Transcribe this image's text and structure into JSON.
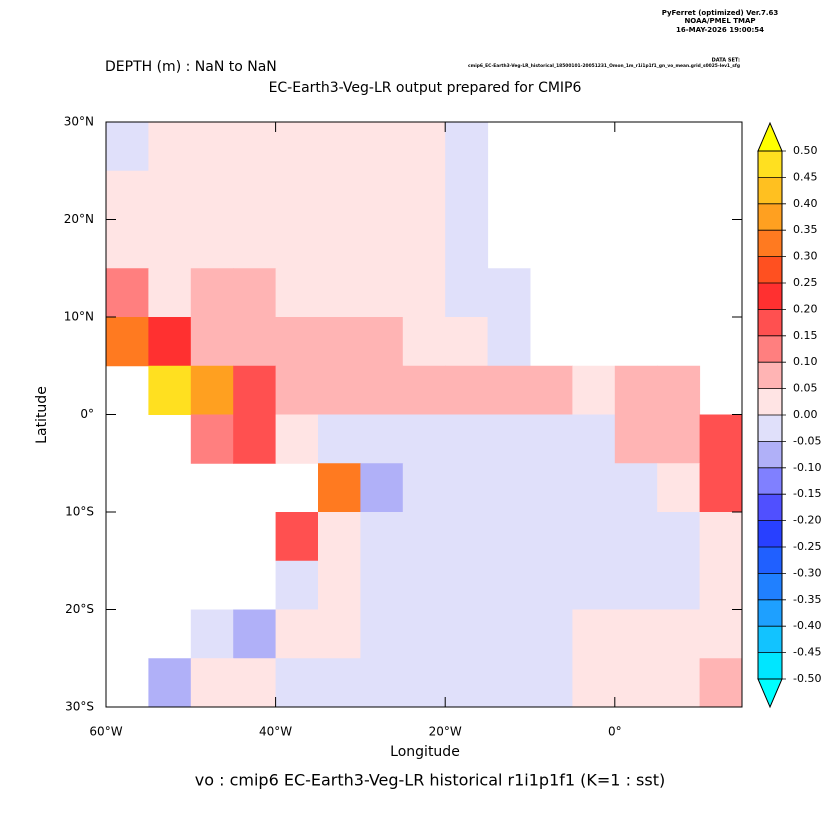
{
  "chart_data": {
    "type": "heatmap",
    "header_lines": [
      "PyFerret (optimized) Ver.7.63",
      "NOAA/PMEL TMAP",
      "16-MAY-2026 19:00:54"
    ],
    "subtitle": "DEPTH (m) : NaN to NaN",
    "dataset_label": "DATA SET:",
    "dataset": "cmip6_EC-Earth3-Veg-LR_historical_18500101-20051231_Omon_1m_r1i1p1f1_gn_vo_mean.grid_s0025-lev1_sfg",
    "title": "EC-Earth3-Veg-LR output prepared for CMIP6",
    "x_label": "Longitude",
    "y_label": "Latitude",
    "footer": "vo : cmip6 EC-Earth3-Veg-LR historical r1i1p1f1   (K=1 : sst)",
    "xlim": [
      -60,
      15
    ],
    "ylim": [
      -30,
      30
    ],
    "xticks": [
      {
        "value": -60,
        "label": "60°W"
      },
      {
        "value": -40,
        "label": "40°W"
      },
      {
        "value": -20,
        "label": "20°W"
      },
      {
        "value": 0,
        "label": "0°"
      }
    ],
    "yticks": [
      {
        "value": 30,
        "label": "30°N"
      },
      {
        "value": 20,
        "label": "20°N"
      },
      {
        "value": 10,
        "label": "10°N"
      },
      {
        "value": 0,
        "label": "0°"
      },
      {
        "value": -10,
        "label": "10°S"
      },
      {
        "value": -20,
        "label": "20°S"
      },
      {
        "value": -30,
        "label": "30°S"
      }
    ],
    "x": [
      -57.5,
      -52.5,
      -47.5,
      -42.5,
      -37.5,
      -32.5,
      -27.5,
      -22.5,
      -17.5,
      -12.5,
      -7.5,
      -2.5,
      2.5,
      7.5,
      12.5
    ],
    "y": [
      27.5,
      22.5,
      17.5,
      12.5,
      7.5,
      2.5,
      -2.5,
      -7.5,
      -12.5,
      -17.5,
      -22.5,
      -27.5
    ],
    "values": [
      [
        -0.02,
        0.02,
        0.02,
        0.02,
        0.02,
        0.02,
        0.02,
        0.02,
        -0.02,
        null,
        null,
        null,
        null,
        null,
        null
      ],
      [
        0.02,
        0.02,
        0.02,
        0.02,
        0.02,
        0.02,
        0.02,
        0.02,
        -0.02,
        null,
        null,
        null,
        null,
        null,
        null
      ],
      [
        0.02,
        0.02,
        0.02,
        0.02,
        0.02,
        0.02,
        0.02,
        0.02,
        -0.02,
        null,
        null,
        null,
        null,
        null,
        null
      ],
      [
        0.1,
        0.02,
        0.07,
        0.07,
        0.02,
        0.02,
        0.02,
        0.02,
        -0.02,
        -0.02,
        null,
        null,
        null,
        null,
        null
      ],
      [
        0.3,
        0.2,
        0.07,
        0.07,
        0.07,
        0.05,
        0.05,
        0.02,
        0.02,
        -0.02,
        null,
        null,
        null,
        null,
        null
      ],
      [
        null,
        0.45,
        0.35,
        0.15,
        0.07,
        0.07,
        0.07,
        0.07,
        0.07,
        0.07,
        0.05,
        0.02,
        0.05,
        0.05,
        null
      ],
      [
        null,
        null,
        0.1,
        0.15,
        0.02,
        -0.05,
        -0.05,
        -0.05,
        -0.05,
        -0.05,
        -0.02,
        -0.02,
        0.05,
        0.05,
        0.15
      ],
      [
        null,
        null,
        null,
        null,
        null,
        0.3,
        -0.07,
        -0.05,
        -0.02,
        -0.02,
        -0.02,
        -0.02,
        -0.02,
        0.02,
        0.15
      ],
      [
        null,
        null,
        null,
        null,
        0.15,
        0.02,
        -0.05,
        -0.02,
        -0.02,
        -0.02,
        -0.02,
        -0.02,
        -0.02,
        -0.02,
        0.02
      ],
      [
        null,
        null,
        null,
        null,
        -0.05,
        0.02,
        -0.02,
        -0.02,
        -0.02,
        -0.02,
        -0.02,
        -0.02,
        -0.02,
        -0.05,
        0.02
      ],
      [
        null,
        null,
        -0.05,
        -0.1,
        0.02,
        0.02,
        -0.02,
        -0.02,
        -0.02,
        -0.02,
        -0.02,
        0.02,
        0.02,
        0.02,
        0.02
      ],
      [
        null,
        -0.1,
        0.02,
        0.02,
        -0.02,
        -0.02,
        -0.02,
        -0.02,
        -0.02,
        -0.02,
        -0.02,
        0.02,
        0.02,
        0.02,
        0.05
      ]
    ],
    "colorbar_ticks": [
      {
        "value": 0.5,
        "label": "0.50"
      },
      {
        "value": 0.45,
        "label": "0.45"
      },
      {
        "value": 0.4,
        "label": "0.40"
      },
      {
        "value": 0.35,
        "label": "0.35"
      },
      {
        "value": 0.3,
        "label": "0.30"
      },
      {
        "value": 0.25,
        "label": "0.25"
      },
      {
        "value": 0.2,
        "label": "0.20"
      },
      {
        "value": 0.15,
        "label": "0.15"
      },
      {
        "value": 0.1,
        "label": "0.10"
      },
      {
        "value": 0.05,
        "label": "0.05"
      },
      {
        "value": 0,
        "label": "0.00"
      },
      {
        "value": -0.05,
        "label": "-0.05"
      },
      {
        "value": -0.1,
        "label": "-0.10"
      },
      {
        "value": -0.15,
        "label": "-0.15"
      },
      {
        "value": -0.2,
        "label": "-0.20"
      },
      {
        "value": -0.25,
        "label": "-0.25"
      },
      {
        "value": -0.3,
        "label": "-0.30"
      },
      {
        "value": -0.35,
        "label": "-0.35"
      },
      {
        "value": -0.4,
        "label": "-0.40"
      },
      {
        "value": -0.45,
        "label": "-0.45"
      },
      {
        "value": -0.5,
        "label": "-0.50"
      }
    ],
    "colors": [
      "#00e6ff",
      "#12c3ff",
      "#1ea0ff",
      "#2080ff",
      "#2060ff",
      "#2840ff",
      "#5050ff",
      "#8080ff",
      "#b0b0f8",
      "#e0e0fa",
      "#ffe4e4",
      "#ffb4b4",
      "#ff7f7f",
      "#ff5050",
      "#ff3030",
      "#ff5020",
      "#ff7a20",
      "#ffa020",
      "#ffc020",
      "#ffe020"
    ],
    "over_color": "#ffff00",
    "under_color": "#00ffff"
  }
}
